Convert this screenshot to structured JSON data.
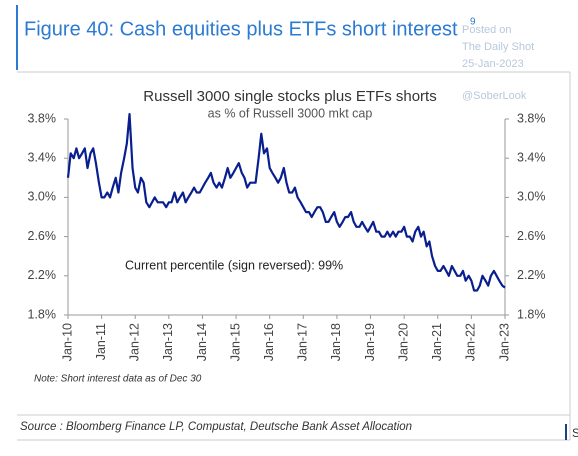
{
  "figure_title": "Figure 40: Cash equities plus ETFs short interest",
  "superscript": "9",
  "watermark": [
    "Posted on",
    "The Daily Shot",
    "25-Jan-2023",
    "@SoberLook"
  ],
  "note": "Note: Short interest data as of Dec 30",
  "source": "Source : Bloomberg Finance LP, Compustat, Deutsche Bank Asset Allocation",
  "cut_text": "S",
  "chart_data": {
    "type": "line",
    "title": "Russell 3000 single stocks plus ETFs shorts",
    "subtitle": "as % of Russell 3000 mkt cap",
    "annotation": "Current percentile (sign reversed): 99%",
    "color": "#0a1f8f",
    "x": [
      2010,
      2010.08,
      2010.17,
      2010.25,
      2010.33,
      2010.42,
      2010.5,
      2010.58,
      2010.67,
      2010.75,
      2010.83,
      2010.92,
      2011,
      2011.08,
      2011.17,
      2011.25,
      2011.33,
      2011.42,
      2011.5,
      2011.58,
      2011.67,
      2011.75,
      2011.83,
      2011.92,
      2012,
      2012.08,
      2012.17,
      2012.25,
      2012.33,
      2012.42,
      2012.5,
      2012.58,
      2012.67,
      2012.75,
      2012.83,
      2012.92,
      2013,
      2013.08,
      2013.17,
      2013.25,
      2013.33,
      2013.42,
      2013.5,
      2013.58,
      2013.67,
      2013.75,
      2013.83,
      2013.92,
      2014,
      2014.08,
      2014.17,
      2014.25,
      2014.33,
      2014.42,
      2014.5,
      2014.58,
      2014.67,
      2014.75,
      2014.83,
      2014.92,
      2015,
      2015.08,
      2015.17,
      2015.25,
      2015.33,
      2015.42,
      2015.5,
      2015.58,
      2015.67,
      2015.75,
      2015.83,
      2015.92,
      2016,
      2016.08,
      2016.17,
      2016.25,
      2016.33,
      2016.42,
      2016.5,
      2016.58,
      2016.67,
      2016.75,
      2016.83,
      2016.92,
      2017,
      2017.08,
      2017.17,
      2017.25,
      2017.33,
      2017.42,
      2017.5,
      2017.58,
      2017.67,
      2017.75,
      2017.83,
      2017.92,
      2018,
      2018.08,
      2018.17,
      2018.25,
      2018.33,
      2018.42,
      2018.5,
      2018.58,
      2018.67,
      2018.75,
      2018.83,
      2018.92,
      2019,
      2019.08,
      2019.17,
      2019.25,
      2019.33,
      2019.42,
      2019.5,
      2019.58,
      2019.67,
      2019.75,
      2019.83,
      2019.92,
      2020,
      2020.08,
      2020.17,
      2020.25,
      2020.33,
      2020.42,
      2020.5,
      2020.58,
      2020.67,
      2020.75,
      2020.83,
      2020.92,
      2021,
      2021.08,
      2021.17,
      2021.25,
      2021.33,
      2021.42,
      2021.5,
      2021.58,
      2021.67,
      2021.75,
      2021.83,
      2021.92,
      2022,
      2022.08,
      2022.17,
      2022.25,
      2022.33,
      2022.42,
      2022.5,
      2022.58,
      2022.67,
      2022.75,
      2022.83,
      2022.92,
      2023
    ],
    "values": [
      3.2,
      3.45,
      3.4,
      3.5,
      3.4,
      3.45,
      3.5,
      3.3,
      3.45,
      3.5,
      3.35,
      3.15,
      3.0,
      3.0,
      3.05,
      3.0,
      3.1,
      3.2,
      3.05,
      3.25,
      3.4,
      3.55,
      3.85,
      3.3,
      3.1,
      3.05,
      3.2,
      3.15,
      2.95,
      2.9,
      2.95,
      3.0,
      2.95,
      2.95,
      2.95,
      2.9,
      2.95,
      2.95,
      3.05,
      2.95,
      3.0,
      3.05,
      2.95,
      3.0,
      3.05,
      3.1,
      3.05,
      3.05,
      3.1,
      3.15,
      3.2,
      3.25,
      3.15,
      3.1,
      3.15,
      3.1,
      3.2,
      3.3,
      3.2,
      3.25,
      3.3,
      3.35,
      3.25,
      3.2,
      3.1,
      3.15,
      3.15,
      3.15,
      3.4,
      3.65,
      3.45,
      3.5,
      3.3,
      3.25,
      3.2,
      3.15,
      3.2,
      3.3,
      3.15,
      3.05,
      3.05,
      3.1,
      3.0,
      2.95,
      2.9,
      2.85,
      2.85,
      2.8,
      2.85,
      2.9,
      2.9,
      2.85,
      2.75,
      2.75,
      2.8,
      2.85,
      2.75,
      2.7,
      2.75,
      2.8,
      2.8,
      2.85,
      2.75,
      2.7,
      2.7,
      2.75,
      2.7,
      2.65,
      2.7,
      2.75,
      2.65,
      2.65,
      2.6,
      2.6,
      2.65,
      2.6,
      2.65,
      2.6,
      2.65,
      2.65,
      2.7,
      2.6,
      2.6,
      2.55,
      2.65,
      2.7,
      2.6,
      2.65,
      2.5,
      2.55,
      2.4,
      2.3,
      2.25,
      2.25,
      2.3,
      2.25,
      2.2,
      2.3,
      2.25,
      2.2,
      2.2,
      2.25,
      2.15,
      2.2,
      2.15,
      2.05,
      2.05,
      2.1,
      2.2,
      2.15,
      2.1,
      2.2,
      2.25,
      2.2,
      2.15,
      2.1,
      2.08
    ],
    "xlim": [
      2010,
      2023
    ],
    "xticks": [
      {
        "value": 2010,
        "label": "Jan-10"
      },
      {
        "value": 2011,
        "label": "Jan-11"
      },
      {
        "value": 2012,
        "label": "Jan-12"
      },
      {
        "value": 2013,
        "label": "Jan-13"
      },
      {
        "value": 2014,
        "label": "Jan-14"
      },
      {
        "value": 2015,
        "label": "Jan-15"
      },
      {
        "value": 2016,
        "label": "Jan-16"
      },
      {
        "value": 2017,
        "label": "Jan-17"
      },
      {
        "value": 2018,
        "label": "Jan-18"
      },
      {
        "value": 2019,
        "label": "Jan-19"
      },
      {
        "value": 2020,
        "label": "Jan-20"
      },
      {
        "value": 2021,
        "label": "Jan-21"
      },
      {
        "value": 2022,
        "label": "Jan-22"
      },
      {
        "value": 2023,
        "label": "Jan-23"
      }
    ],
    "ylim": [
      1.8,
      3.8
    ],
    "yticks": [
      {
        "value": 1.8,
        "label": "1.8%"
      },
      {
        "value": 2.2,
        "label": "2.2%"
      },
      {
        "value": 2.6,
        "label": "2.6%"
      },
      {
        "value": 3.0,
        "label": "3.0%"
      },
      {
        "value": 3.4,
        "label": "3.4%"
      },
      {
        "value": 3.8,
        "label": "3.8%"
      }
    ],
    "right_axis": true,
    "grid": false
  }
}
